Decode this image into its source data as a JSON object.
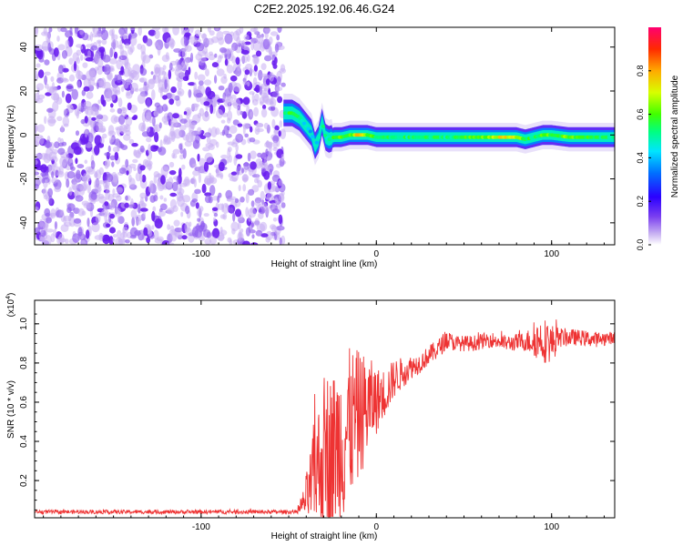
{
  "title": "C2E2.2025.192.06.46.G24",
  "chart_data": [
    {
      "type": "heatmap",
      "name": "spectrogram",
      "xlabel": "Height of straight line (km)",
      "ylabel": "Frequency (Hz)",
      "xlim": [
        -195,
        136
      ],
      "ylim": [
        -50,
        49
      ],
      "xticks": [
        "-100",
        "0",
        "100"
      ],
      "yticks": [
        "-40",
        "-20",
        "0",
        "20",
        "40"
      ],
      "colorbar": {
        "label": "Normalized spectral amplitude",
        "range": [
          0,
          1
        ],
        "ticks": [
          "0.0",
          "0.2",
          "0.4",
          "0.6",
          "0.8"
        ],
        "colormap": [
          "#ffffff",
          "#c9b3f2",
          "#7a3ef0",
          "#2b00ff",
          "#0070ff",
          "#00e5ff",
          "#00ff80",
          "#40ff00",
          "#d8ff00",
          "#ffaa00",
          "#ff2a00",
          "#ff0070"
        ]
      },
      "noise_region": {
        "x": [
          -195,
          -53
        ],
        "level": 0.2
      },
      "signal_track": {
        "x": [
          -53,
          -48,
          -44,
          -40,
          -37,
          -35,
          -33,
          -31,
          -29,
          -27,
          -24,
          -20,
          -15,
          -10,
          -5,
          0,
          10,
          20,
          30,
          40,
          50,
          60,
          70,
          80,
          85,
          90,
          95,
          100,
          110,
          120,
          130,
          136
        ],
        "freq": [
          10,
          10,
          8,
          4,
          1,
          -5,
          -2,
          6,
          -1,
          -2,
          -1,
          -1,
          0,
          0,
          0,
          -1,
          -1,
          -1,
          -1,
          -1,
          -1,
          -1,
          -1,
          -1,
          -2,
          -1,
          0,
          0,
          -1,
          -1,
          -1,
          -1
        ],
        "amplitude": [
          0.5,
          0.55,
          0.5,
          0.4,
          0.35,
          0.4,
          0.4,
          0.45,
          0.45,
          0.5,
          0.55,
          0.6,
          0.55,
          0.75,
          0.6,
          0.5,
          0.5,
          0.5,
          0.5,
          0.5,
          0.55,
          0.6,
          0.7,
          0.65,
          0.55,
          0.5,
          0.6,
          0.55,
          0.6,
          0.55,
          0.5,
          0.5
        ]
      }
    },
    {
      "type": "line",
      "name": "snr",
      "xlabel": "Height of straight line (km)",
      "ylabel": "SNR (10 * v/v)",
      "yunit": "(x10",
      "yunit_exp": "4",
      "yunit_close": ")",
      "xlim": [
        -195,
        136
      ],
      "ylim": [
        0.01,
        1.12
      ],
      "xticks": [
        "-100",
        "0",
        "100"
      ],
      "yticks": [
        "0.2",
        "0.4",
        "0.6",
        "0.8",
        "1.0"
      ],
      "color": "#ee3333",
      "envelope": {
        "x": [
          -195,
          -45,
          -42,
          -38,
          -35,
          -32,
          -29,
          -26,
          -23,
          -20,
          -17,
          -14,
          -11,
          -8,
          -5,
          -2,
          2,
          6,
          10,
          15,
          20,
          25,
          30,
          35,
          40,
          45,
          55,
          65,
          75,
          85,
          95,
          100,
          105,
          115,
          125,
          136
        ],
        "mean": [
          0.04,
          0.04,
          0.08,
          0.15,
          0.25,
          0.28,
          0.35,
          0.3,
          0.38,
          0.4,
          0.45,
          0.5,
          0.52,
          0.55,
          0.58,
          0.6,
          0.62,
          0.66,
          0.72,
          0.75,
          0.78,
          0.8,
          0.84,
          0.87,
          0.92,
          0.9,
          0.9,
          0.92,
          0.9,
          0.91,
          0.92,
          0.9,
          0.93,
          0.93,
          0.92,
          0.93
        ],
        "spread": [
          0.01,
          0.01,
          0.06,
          0.18,
          0.3,
          0.35,
          0.45,
          0.45,
          0.4,
          0.45,
          0.42,
          0.38,
          0.35,
          0.3,
          0.28,
          0.2,
          0.15,
          0.12,
          0.1,
          0.08,
          0.06,
          0.05,
          0.05,
          0.05,
          0.05,
          0.04,
          0.04,
          0.04,
          0.04,
          0.05,
          0.12,
          0.1,
          0.05,
          0.04,
          0.04,
          0.03
        ]
      }
    }
  ]
}
